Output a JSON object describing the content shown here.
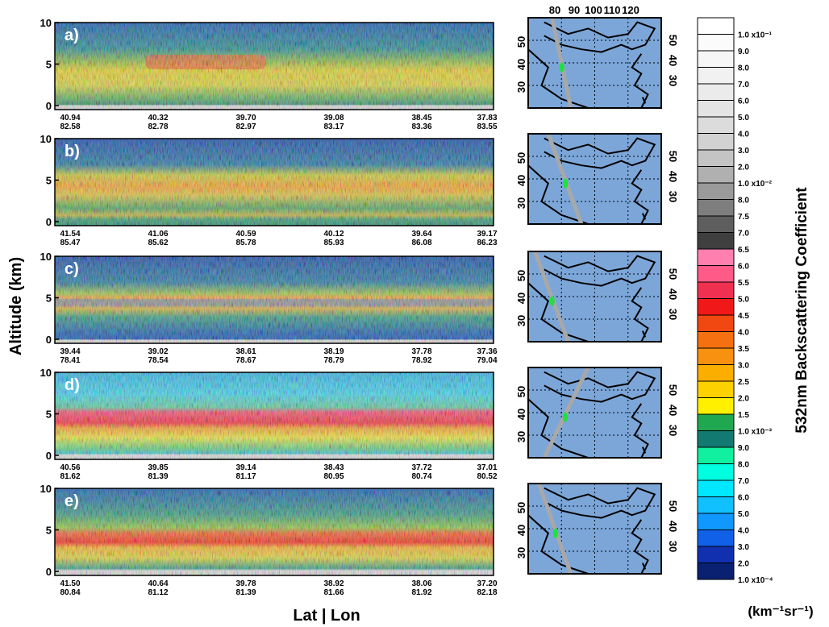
{
  "y_axis_label": "Altitude   (km)",
  "x_axis_label": "Lat | Lon",
  "colorbar_label": "532nm Backscattering Coefficient",
  "colorbar_unit": "(km⁻¹sr⁻¹)",
  "ylim": [
    0,
    10
  ],
  "yticks": [
    0,
    5,
    10
  ],
  "map_top_ticks": [
    "80",
    "90",
    "100",
    "110",
    "120"
  ],
  "map_lat_ticks": [
    "50",
    "40",
    "30"
  ],
  "panels": [
    {
      "label": "a)",
      "lat": [
        "40.94",
        "40.32",
        "39.70",
        "39.08",
        "38.45",
        "37.83"
      ],
      "lon": [
        "82.58",
        "82.78",
        "82.97",
        "83.17",
        "83.36",
        "83.55"
      ]
    },
    {
      "label": "b)",
      "lat": [
        "41.54",
        "41.06",
        "40.59",
        "40.12",
        "39.64",
        "39.17"
      ],
      "lon": [
        "85.47",
        "85.62",
        "85.78",
        "85.93",
        "86.08",
        "86.23"
      ]
    },
    {
      "label": "c)",
      "lat": [
        "39.44",
        "39.02",
        "38.61",
        "38.19",
        "37.78",
        "37.36"
      ],
      "lon": [
        "78.41",
        "78.54",
        "78.67",
        "78.79",
        "78.92",
        "79.04"
      ]
    },
    {
      "label": "d)",
      "lat": [
        "40.56",
        "39.85",
        "39.14",
        "38.43",
        "37.72",
        "37.01"
      ],
      "lon": [
        "81.62",
        "81.39",
        "81.17",
        "80.95",
        "80.74",
        "80.52"
      ]
    },
    {
      "label": "e)",
      "lat": [
        "41.50",
        "40.64",
        "39.78",
        "38.92",
        "38.06",
        "37.20"
      ],
      "lon": [
        "80.84",
        "81.12",
        "81.39",
        "81.66",
        "81.92",
        "82.18"
      ]
    }
  ],
  "colorbar": {
    "labels": [
      "1.0 x10⁻¹",
      "9.0",
      "8.0",
      "7.0",
      "6.0",
      "5.0",
      "4.0",
      "3.0",
      "2.0",
      "1.0 x10⁻²",
      "8.0",
      "7.5",
      "7.0",
      "6.5",
      "6.0",
      "5.5",
      "5.0",
      "4.5",
      "4.0",
      "3.5",
      "3.0",
      "2.5",
      "2.0",
      "1.5",
      "1.0 x10⁻³",
      "9.0",
      "8.0",
      "7.0",
      "6.0",
      "5.0",
      "4.0",
      "3.0",
      "2.0",
      "1.0 x10⁻⁴"
    ],
    "colors": [
      "#ffffff",
      "#fbfbfb",
      "#f6f6f6",
      "#f1f1f1",
      "#ebebeb",
      "#e4e4e4",
      "#dcdcdc",
      "#d2d2d2",
      "#c4c4c4",
      "#b0b0b0",
      "#9a9a9a",
      "#7e7e7e",
      "#5e5e5e",
      "#3f3f3f",
      "#ff7fae",
      "#ff5a88",
      "#f03050",
      "#f01818",
      "#f04810",
      "#f57010",
      "#f89010",
      "#fbad00",
      "#fdd000",
      "#fff000",
      "#20a850",
      "#127a70",
      "#10f0a0",
      "#00ffe0",
      "#00e8ff",
      "#10c0ff",
      "#1098ff",
      "#1060e8",
      "#1030b0",
      "#0a2070"
    ]
  }
}
